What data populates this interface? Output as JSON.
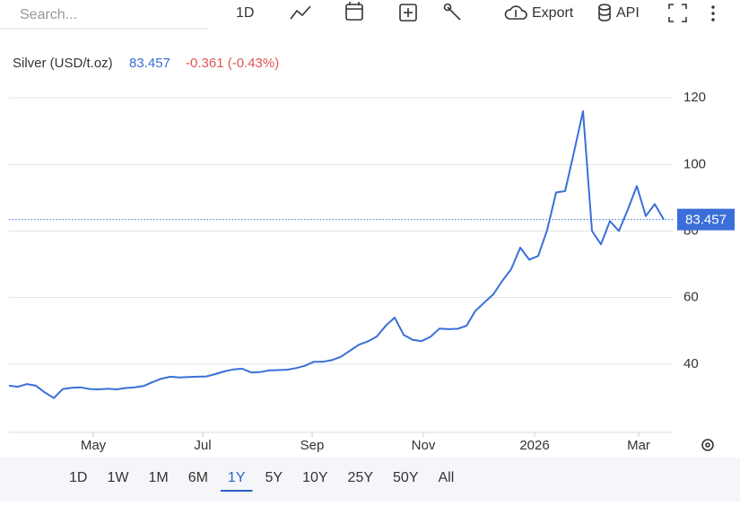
{
  "toolbar": {
    "search": "Search...",
    "interval": "1D",
    "export": "Export",
    "api": "API"
  },
  "ranges": {
    "items": [
      "1D",
      "1W",
      "1M",
      "6M",
      "1Y",
      "5Y",
      "10Y",
      "25Y",
      "50Y",
      "All"
    ],
    "selected": "1Y"
  },
  "chart_data": {
    "type": "line",
    "series": [
      {
        "name": "Silver (USD/t.oz)",
        "color": "#3a6fd8",
        "change": "-0.361 (-0.43%)",
        "values": [
          33.5,
          33.2,
          34,
          33.5,
          31.5,
          29.8,
          32.5,
          32.9,
          33,
          32.5,
          32.4,
          32.6,
          32.4,
          32.8,
          33,
          33.4,
          34.6,
          35.6,
          36.2,
          36,
          36.1,
          36.2,
          36.3,
          37,
          37.8,
          38.4,
          38.6,
          37.5,
          37.6,
          38.1,
          38.2,
          38.3,
          38.8,
          39.5,
          40.7,
          40.7,
          41.2,
          42.2,
          44,
          45.8,
          46.8,
          48.3,
          51.5,
          54,
          48.8,
          47.3,
          46.9,
          48.2,
          50.7,
          50.5,
          50.6,
          51.5,
          56,
          58.5,
          61,
          65,
          68.6,
          75,
          71.4,
          72.5,
          80.3,
          91.6,
          92,
          103.8,
          116,
          80,
          76,
          83,
          80,
          86.5,
          93.5,
          84.5,
          88.1,
          83.457
        ]
      }
    ],
    "xlim": [
      0,
      74
    ],
    "xticks": [
      {
        "value": 9.4,
        "label": "May"
      },
      {
        "value": 21.6,
        "label": "Jul"
      },
      {
        "value": 33.8,
        "label": "Sep"
      },
      {
        "value": 46.2,
        "label": "Nov"
      },
      {
        "value": 58.6,
        "label": "2026"
      },
      {
        "value": 70.2,
        "label": "Mar"
      }
    ],
    "ylim": [
      20,
      140
    ],
    "yticks": [
      40,
      60,
      80,
      100,
      120
    ],
    "grid": true
  }
}
